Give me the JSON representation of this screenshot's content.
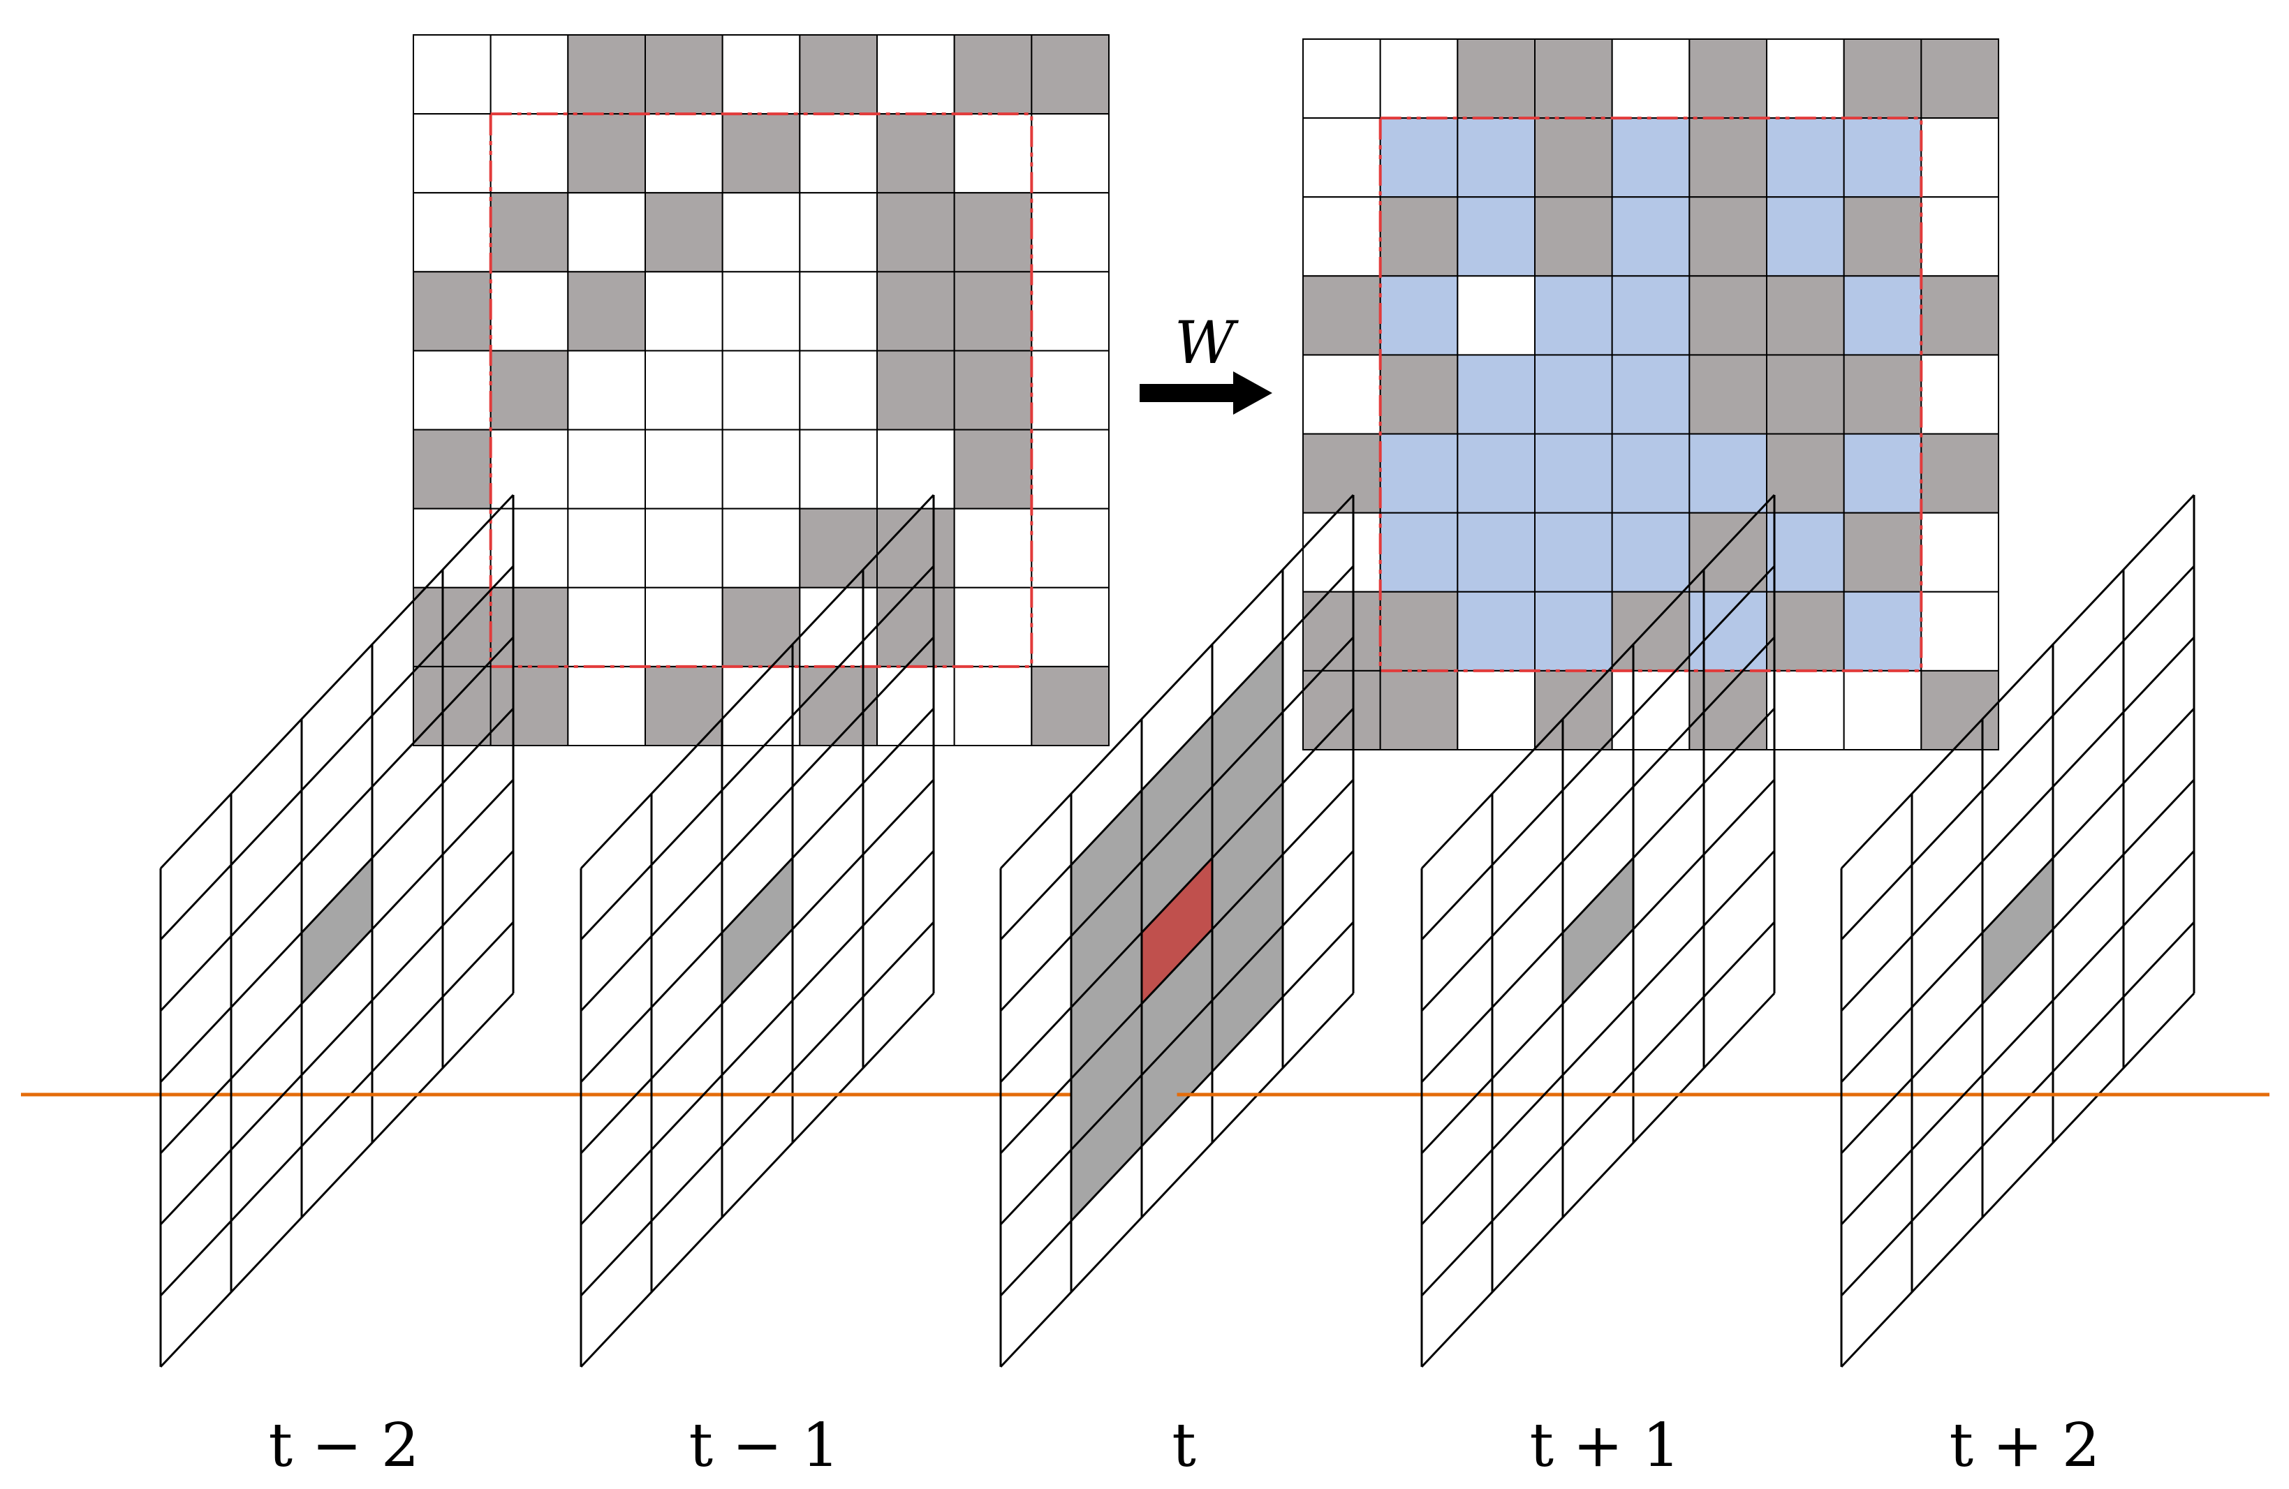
{
  "transform": {
    "operator_label": "W"
  },
  "left_grid": {
    "name": "binary-grid-before",
    "rows": [
      "001101011",
      "001010100",
      "010100110",
      "101000110",
      "010000110",
      "100000010",
      "000001100",
      "110010100",
      "110101001"
    ]
  },
  "right_grid": {
    "name": "grid-after-transform",
    "rows": [
      "001101011",
      "022121220",
      "012121210",
      "120221121",
      "012221110",
      "122222121",
      "022221210",
      "112212120",
      "110101001"
    ]
  },
  "colors": {
    "occupied": "#aaa6a6",
    "highlight": "#b4c7e7",
    "window_border": "#e23b3b",
    "time_line": "#e46c0a",
    "center_cell_t": "#c0504d",
    "neighborhood_t": "#a6a6a6",
    "center_cell_other": "#a6a6a6"
  },
  "frames": [
    {
      "label": "t − 2",
      "is_current": false
    },
    {
      "label": "t − 1",
      "is_current": false
    },
    {
      "label": "t",
      "is_current": true
    },
    {
      "label": "t + 1",
      "is_current": false
    },
    {
      "label": "t + 2",
      "is_current": false
    }
  ]
}
